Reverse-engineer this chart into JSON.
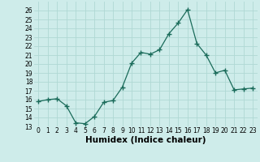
{
  "x": [
    0,
    1,
    2,
    3,
    4,
    5,
    6,
    7,
    8,
    9,
    10,
    11,
    12,
    13,
    14,
    15,
    16,
    17,
    18,
    19,
    20,
    21,
    22,
    23
  ],
  "y": [
    15.8,
    16.0,
    16.1,
    15.3,
    13.4,
    13.3,
    14.1,
    15.7,
    15.9,
    17.4,
    20.1,
    21.3,
    21.1,
    21.6,
    23.4,
    24.6,
    26.1,
    22.3,
    21.0,
    19.0,
    19.3,
    17.1,
    17.2,
    17.3
  ],
  "xlabel": "Humidex (Indice chaleur)",
  "ylim": [
    13,
    27
  ],
  "xlim": [
    -0.5,
    23.5
  ],
  "yticks": [
    13,
    14,
    15,
    16,
    17,
    18,
    19,
    20,
    21,
    22,
    23,
    24,
    25,
    26
  ],
  "xtick_labels": [
    "0",
    "1",
    "2",
    "3",
    "4",
    "5",
    "6",
    "7",
    "8",
    "9",
    "10",
    "11",
    "12",
    "13",
    "14",
    "15",
    "16",
    "17",
    "18",
    "19",
    "20",
    "21",
    "22",
    "23"
  ],
  "line_color": "#1a6b5a",
  "marker": "+",
  "marker_size": 4,
  "bg_color": "#ceecea",
  "grid_color": "#b0d8d4",
  "tick_label_fontsize": 5.5,
  "xlabel_fontsize": 7.5
}
